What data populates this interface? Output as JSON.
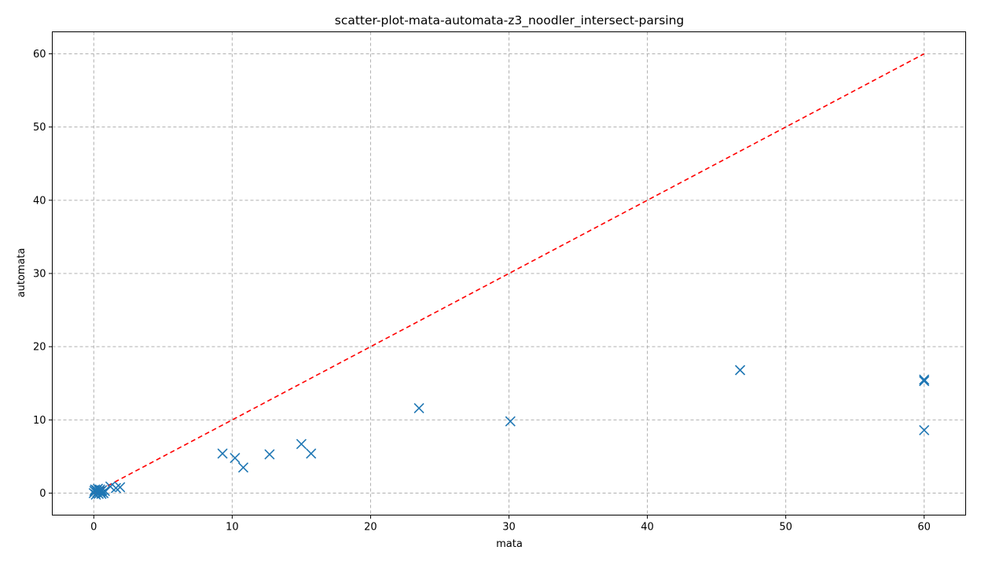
{
  "chart_data": {
    "type": "scatter",
    "title": "scatter-plot-mata-automata-z3_noodler_intersect-parsing",
    "xlabel": "mata",
    "ylabel": "automata",
    "xlim": [
      -3,
      63
    ],
    "ylim": [
      -3,
      63
    ],
    "xticks": [
      0,
      10,
      20,
      30,
      40,
      50,
      60
    ],
    "yticks": [
      0,
      10,
      20,
      30,
      40,
      50,
      60
    ],
    "grid": true,
    "marker": "x",
    "colors": {
      "points": "#1f77b4",
      "reference_line": "#ff0000"
    },
    "reference_line": {
      "from": [
        0,
        0
      ],
      "to": [
        60,
        60
      ],
      "style": "dashed"
    },
    "series": [
      {
        "values": [
          {
            "x": 0.0,
            "y": 0.0
          },
          {
            "x": 0.05,
            "y": 0.3
          },
          {
            "x": 0.1,
            "y": 0.5
          },
          {
            "x": 0.15,
            "y": -0.2
          },
          {
            "x": 0.2,
            "y": 0.4
          },
          {
            "x": 0.25,
            "y": 0.1
          },
          {
            "x": 0.3,
            "y": 0.6
          },
          {
            "x": 0.35,
            "y": -0.1
          },
          {
            "x": 0.4,
            "y": 0.3
          },
          {
            "x": 0.45,
            "y": 0.5
          },
          {
            "x": 0.5,
            "y": 0.2
          },
          {
            "x": 0.55,
            "y": -0.1
          },
          {
            "x": 0.6,
            "y": 0.4
          },
          {
            "x": 0.7,
            "y": 0.0
          },
          {
            "x": 0.8,
            "y": 0.3
          },
          {
            "x": 1.2,
            "y": 0.9
          },
          {
            "x": 1.6,
            "y": 0.7
          },
          {
            "x": 1.9,
            "y": 0.8
          },
          {
            "x": 9.3,
            "y": 5.4
          },
          {
            "x": 10.2,
            "y": 4.8
          },
          {
            "x": 10.8,
            "y": 3.5
          },
          {
            "x": 12.7,
            "y": 5.3
          },
          {
            "x": 15.0,
            "y": 6.7
          },
          {
            "x": 15.7,
            "y": 5.4
          },
          {
            "x": 23.5,
            "y": 11.6
          },
          {
            "x": 30.1,
            "y": 9.8
          },
          {
            "x": 46.7,
            "y": 16.8
          },
          {
            "x": 60.0,
            "y": 15.3
          },
          {
            "x": 60.0,
            "y": 15.5
          },
          {
            "x": 60.0,
            "y": 8.6
          }
        ]
      }
    ]
  }
}
